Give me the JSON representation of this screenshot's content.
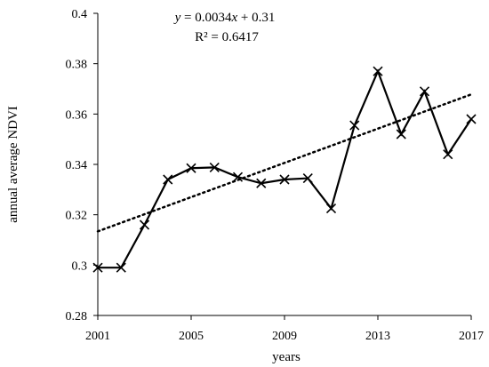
{
  "chart_data": {
    "type": "line",
    "xlabel": "years",
    "ylabel": "annual average NDVI",
    "xlim": [
      2001,
      2017
    ],
    "ylim": [
      0.28,
      0.4
    ],
    "x_ticks": [
      2001,
      2005,
      2009,
      2013,
      2017
    ],
    "x_tick_labels": [
      "2001",
      "2005",
      "2009",
      "2013",
      "2017"
    ],
    "y_ticks": [
      0.28,
      0.3,
      0.32,
      0.34,
      0.36,
      0.38,
      0.4
    ],
    "y_tick_labels": [
      "0.28",
      "0.3",
      "0.32",
      "0.34",
      "0.36",
      "0.38",
      "0.4"
    ],
    "grid": false,
    "series": [
      {
        "marker": "x",
        "color": "#000000",
        "x": [
          2001,
          2002,
          2003,
          2004,
          2005,
          2006,
          2007,
          2008,
          2009,
          2010,
          2011,
          2012,
          2013,
          2014,
          2015,
          2016,
          2017
        ],
        "values": [
          0.299,
          0.299,
          0.316,
          0.334,
          0.3385,
          0.3388,
          0.335,
          0.3325,
          0.334,
          0.3345,
          0.3225,
          0.3555,
          0.377,
          0.352,
          0.369,
          0.344,
          0.358
        ]
      }
    ],
    "trendline": {
      "style": "dotted",
      "slope": 0.0034,
      "intercept": 0.31,
      "x_start_index": 0,
      "equation_prefix": "y",
      "equation_mid": " = 0.0034",
      "equation_var": "x",
      "equation_suffix": " + 0.31",
      "r_squared_label": "R² = 0.6417"
    }
  }
}
